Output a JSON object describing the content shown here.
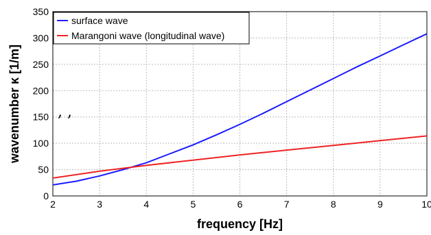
{
  "chart_data": {
    "type": "line",
    "title": "",
    "xlabel": "frequency [Hz]",
    "ylabel": "wavenumber κ [1/m]",
    "xlim": [
      2,
      10
    ],
    "ylim": [
      0,
      350
    ],
    "x_ticks": [
      "2",
      "3",
      "4",
      "5",
      "6",
      "7",
      "8",
      "9",
      "10"
    ],
    "y_ticks": [
      "0",
      "50",
      "100",
      "150",
      "200",
      "250",
      "300",
      "350"
    ],
    "grid": true,
    "legend_position": "top-left",
    "series": [
      {
        "name": "surface wave",
        "color": "#1a1aff",
        "x": [
          2,
          2.5,
          3,
          3.5,
          4,
          4.5,
          5,
          5.5,
          6,
          6.5,
          7,
          7.5,
          8,
          8.5,
          9,
          9.5,
          10
        ],
        "y": [
          21,
          28,
          38,
          50,
          63,
          80,
          97,
          116,
          136,
          157,
          179,
          201,
          223,
          245,
          266,
          287,
          308
        ]
      },
      {
        "name": "Marangoni wave (longitudinal wave)",
        "color": "#ee2222",
        "x": [
          2,
          3,
          4,
          5,
          6,
          7,
          8,
          9,
          10
        ],
        "y": [
          34,
          47,
          58,
          68,
          78,
          87,
          96,
          105,
          114
        ]
      }
    ]
  },
  "annotation": ", ,"
}
